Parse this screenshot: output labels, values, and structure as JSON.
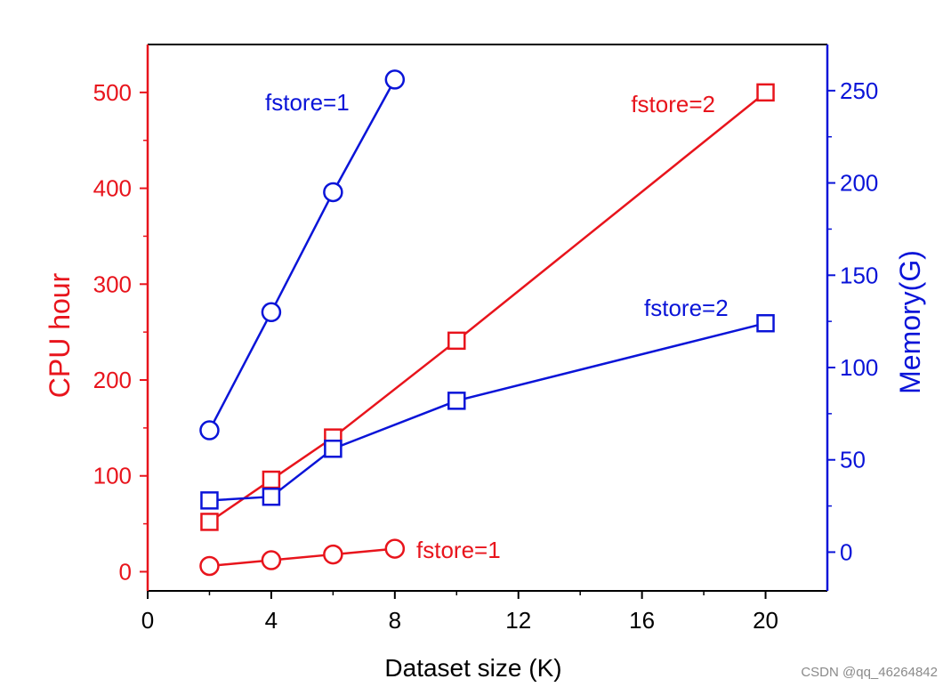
{
  "chart_data": {
    "type": "line",
    "xlabel": "Dataset size (K)",
    "xlim": [
      0,
      22
    ],
    "xticks": [
      0,
      4,
      8,
      12,
      16,
      20
    ],
    "y_left": {
      "label": "CPU hour",
      "color": "#e8141c",
      "ylim": [
        -20,
        550
      ],
      "ticks": [
        0,
        100,
        200,
        300,
        400,
        500
      ]
    },
    "y_right": {
      "label": "Memory(G)",
      "color": "#0a14d8",
      "ylim": [
        -21,
        275
      ],
      "ticks": [
        0,
        50,
        100,
        150,
        200,
        250
      ]
    },
    "grid": false,
    "series": [
      {
        "name": "fstore=1",
        "axis": "left",
        "marker": "circle",
        "color": "#e8141c",
        "x": [
          2,
          4,
          6,
          8
        ],
        "y": [
          6,
          12,
          18,
          24
        ]
      },
      {
        "name": "fstore=2",
        "axis": "left",
        "marker": "square",
        "color": "#e8141c",
        "x": [
          2,
          4,
          6,
          10,
          20
        ],
        "y": [
          52,
          96,
          140,
          241,
          500
        ]
      },
      {
        "name": "fstore=1",
        "axis": "right",
        "marker": "circle",
        "color": "#0a14d8",
        "x": [
          2,
          4,
          6,
          8
        ],
        "y": [
          66,
          130,
          195,
          256
        ]
      },
      {
        "name": "fstore=2",
        "axis": "right",
        "marker": "square",
        "color": "#0a14d8",
        "x": [
          2,
          4,
          6,
          10,
          20
        ],
        "y": [
          28,
          30,
          56,
          82,
          124
        ]
      }
    ]
  },
  "watermark": "CSDN @qq_46264842"
}
